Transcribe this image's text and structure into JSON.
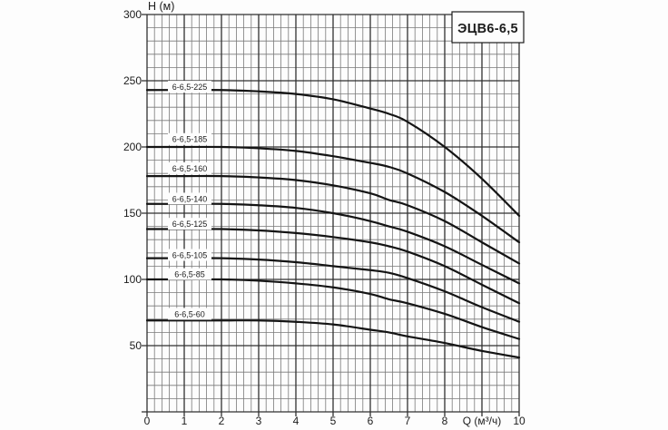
{
  "title_box": {
    "label": "ЭЦВ6-6,5"
  },
  "chart_data": {
    "type": "line",
    "title": "ЭЦВ6-6,5",
    "xlabel": "Q (м³/ч)",
    "ylabel": "Н (м)",
    "xlim": [
      0,
      10
    ],
    "ylim": [
      0,
      300
    ],
    "x_major_ticks": [
      0,
      1,
      2,
      3,
      4,
      5,
      6,
      7,
      8,
      10
    ],
    "xlabel_at": 9,
    "x_minor_step": 0.2,
    "y_major_ticks": [
      50,
      100,
      150,
      200,
      250,
      300
    ],
    "y_minor_step": 10,
    "grid": true,
    "legend": "inline-labels-on-curves",
    "series": [
      {
        "name": "6-6,5-225",
        "label_h": 245.5,
        "points": [
          [
            0,
            243
          ],
          [
            1,
            243
          ],
          [
            2,
            243
          ],
          [
            3,
            242
          ],
          [
            4,
            240
          ],
          [
            5,
            236
          ],
          [
            6,
            229
          ],
          [
            6.5,
            225
          ],
          [
            7,
            219
          ],
          [
            8,
            200
          ],
          [
            9,
            176
          ],
          [
            10,
            148
          ]
        ]
      },
      {
        "name": "6-6,5-185",
        "label_h": 206,
        "points": [
          [
            0,
            200
          ],
          [
            1,
            200
          ],
          [
            2,
            200
          ],
          [
            3,
            199
          ],
          [
            4,
            197
          ],
          [
            5,
            193
          ],
          [
            6,
            188
          ],
          [
            6.5,
            185
          ],
          [
            7,
            180
          ],
          [
            8,
            166
          ],
          [
            9,
            148
          ],
          [
            10,
            128
          ]
        ]
      },
      {
        "name": "6-6,5-160",
        "label_h": 184,
        "points": [
          [
            0,
            178
          ],
          [
            1,
            178
          ],
          [
            2,
            178
          ],
          [
            3,
            177
          ],
          [
            4,
            175
          ],
          [
            5,
            171
          ],
          [
            6,
            165
          ],
          [
            6.5,
            160
          ],
          [
            7,
            156
          ],
          [
            8,
            144
          ],
          [
            9,
            128
          ],
          [
            10,
            112
          ]
        ]
      },
      {
        "name": "6-6,5-140",
        "label_h": 161,
        "points": [
          [
            0,
            157
          ],
          [
            1,
            157
          ],
          [
            2,
            157
          ],
          [
            3,
            156
          ],
          [
            4,
            154
          ],
          [
            5,
            150
          ],
          [
            6,
            144
          ],
          [
            6.5,
            140
          ],
          [
            7,
            136
          ],
          [
            8,
            125
          ],
          [
            9,
            111
          ],
          [
            10,
            97
          ]
        ]
      },
      {
        "name": "6-6,5-125",
        "label_h": 142,
        "points": [
          [
            0,
            138
          ],
          [
            1,
            138
          ],
          [
            2,
            138
          ],
          [
            3,
            137
          ],
          [
            4,
            135
          ],
          [
            5,
            132
          ],
          [
            6,
            128
          ],
          [
            6.5,
            125
          ],
          [
            7,
            121
          ],
          [
            8,
            110
          ],
          [
            9,
            96
          ],
          [
            10,
            82
          ]
        ]
      },
      {
        "name": "6-6,5-105",
        "label_h": 118.5,
        "points": [
          [
            0,
            116
          ],
          [
            1,
            116
          ],
          [
            2,
            116
          ],
          [
            3,
            115
          ],
          [
            4,
            113
          ],
          [
            5,
            110
          ],
          [
            6,
            107
          ],
          [
            6.5,
            105
          ],
          [
            7,
            101
          ],
          [
            8,
            91
          ],
          [
            9,
            79
          ],
          [
            10,
            68
          ]
        ]
      },
      {
        "name": "6-6,5-85",
        "label_h": 104,
        "points": [
          [
            0,
            100
          ],
          [
            1,
            100
          ],
          [
            2,
            100
          ],
          [
            3,
            99
          ],
          [
            4,
            97
          ],
          [
            5,
            94
          ],
          [
            6,
            89
          ],
          [
            6.5,
            85
          ],
          [
            7,
            82
          ],
          [
            8,
            74
          ],
          [
            9,
            64
          ],
          [
            10,
            55
          ]
        ]
      },
      {
        "name": "6-6,5-60",
        "label_h": 74,
        "points": [
          [
            0,
            69
          ],
          [
            1,
            69
          ],
          [
            2,
            69
          ],
          [
            3,
            69
          ],
          [
            4,
            68
          ],
          [
            5,
            66
          ],
          [
            6,
            62
          ],
          [
            6.5,
            60
          ],
          [
            7,
            57
          ],
          [
            8,
            52
          ],
          [
            9,
            46
          ],
          [
            10,
            41
          ]
        ]
      }
    ]
  },
  "colors": {
    "curve": "#141414",
    "grid_minor": "#7a7a7a",
    "grid_major": "#303030",
    "text": "#1c1c1c",
    "label_box_fill": "#fdfdfd",
    "background": "#fdfdfd"
  }
}
